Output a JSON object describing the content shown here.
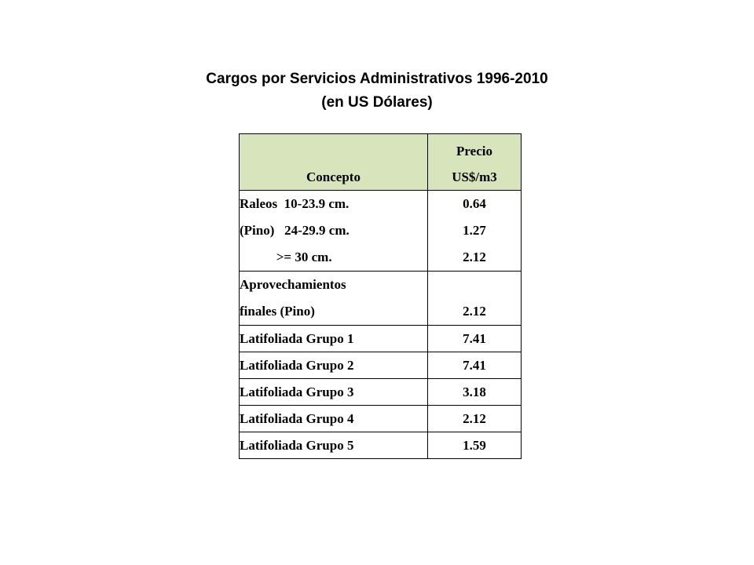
{
  "title": {
    "line1": "Cargos por Servicios Administrativos 1996-2010",
    "line2": "(en US Dólares)"
  },
  "table": {
    "header": {
      "concepto": "Concepto",
      "precio_line1": "Precio",
      "precio_line2": "US$/m3"
    },
    "raleos": {
      "concepto_lines": [
        "Raleos  10-23.9 cm.",
        "(Pino)   24-29.9 cm.",
        "           >= 30 cm."
      ],
      "precio_lines": [
        "0.64",
        "1.27",
        "2.12"
      ]
    },
    "aprovechamientos": {
      "concepto_lines": [
        "Aprovechamientos",
        "finales (Pino)"
      ],
      "precio": "2.12"
    },
    "rows": [
      {
        "concepto": "Latifoliada Grupo 1",
        "precio": "7.41"
      },
      {
        "concepto": "Latifoliada Grupo 2",
        "precio": "7.41"
      },
      {
        "concepto": "Latifoliada Grupo 3",
        "precio": "3.18"
      },
      {
        "concepto": "Latifoliada Grupo 4",
        "precio": "2.12"
      },
      {
        "concepto": "Latifoliada Grupo 5",
        "precio": "1.59"
      }
    ],
    "header_color": "#d8e4bc"
  }
}
